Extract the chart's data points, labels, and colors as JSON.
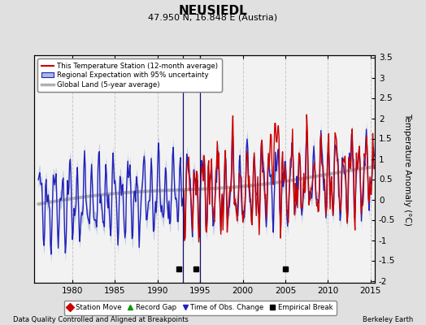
{
  "title": "NEUSIEDL",
  "subtitle": "47.950 N, 16.848 E (Austria)",
  "ylabel": "Temperature Anomaly (°C)",
  "footer_left": "Data Quality Controlled and Aligned at Breakpoints",
  "footer_right": "Berkeley Earth",
  "xlim": [
    1975.5,
    2015.5
  ],
  "ylim": [
    -2.05,
    3.55
  ],
  "yticks": [
    -2,
    -1.5,
    -1,
    -0.5,
    0,
    0.5,
    1,
    1.5,
    2,
    2.5,
    3,
    3.5
  ],
  "xticks": [
    1980,
    1985,
    1990,
    1995,
    2000,
    2005,
    2010,
    2015
  ],
  "bg_color": "#e0e0e0",
  "plot_bg_color": "#f2f2f2",
  "grid_color": "#c8c8c8",
  "station_color": "#cc0000",
  "regional_color": "#2222bb",
  "regional_fill_color": "#aabbdd",
  "global_color": "#b0b0b0",
  "legend_labels": [
    "This Temperature Station (12-month average)",
    "Regional Expectation with 95% uncertainty",
    "Global Land (5-year average)"
  ],
  "time_of_obs_lines": [
    1993.0,
    1995.0
  ],
  "empirical_break_markers": [
    1992.5,
    1994.5,
    2005.0
  ],
  "station_start_year": 1993.0
}
